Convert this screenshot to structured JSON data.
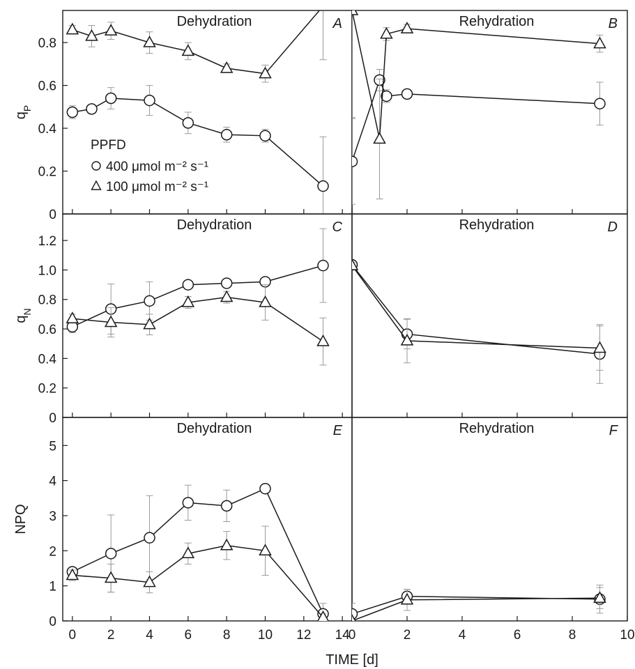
{
  "chart_data": [
    {
      "id": "A",
      "type": "line",
      "panel_title": "Dehydration",
      "panel_letter": "A",
      "ylabel": "q",
      "ylabel_sub": "P",
      "ylim": [
        0,
        0.95
      ],
      "yticks": [
        0,
        0.2,
        0.4,
        0.6,
        0.8
      ],
      "ytick_labels": [
        "0",
        "0.2",
        "0.4",
        "0.6",
        "0.8"
      ],
      "xlim": [
        -0.5,
        14.5
      ],
      "xticks": [
        0,
        2,
        4,
        6,
        8,
        10,
        12,
        14
      ],
      "series": [
        {
          "marker": "circle",
          "x": [
            0,
            1,
            2,
            4,
            6,
            8,
            10,
            13
          ],
          "y": [
            0.475,
            0.49,
            0.54,
            0.53,
            0.425,
            0.37,
            0.365,
            0.13
          ],
          "err": [
            0.03,
            0.02,
            0.05,
            0.07,
            0.05,
            0.035,
            0.03,
            0.23
          ]
        },
        {
          "marker": "triangle",
          "x": [
            0,
            1,
            2,
            4,
            6,
            8,
            10,
            13
          ],
          "y": [
            0.86,
            0.83,
            0.855,
            0.8,
            0.76,
            0.68,
            0.655,
            0.97
          ],
          "err": [
            0.02,
            0.05,
            0.04,
            0.05,
            0.04,
            0.02,
            0.04,
            0.25
          ]
        }
      ],
      "legend": {
        "title": "PPFD",
        "entries": [
          {
            "marker": "circle",
            "label": "400 μmol m⁻² s⁻¹"
          },
          {
            "marker": "triangle",
            "label": "100 μmol m⁻² s⁻¹"
          }
        ]
      }
    },
    {
      "id": "B",
      "type": "line",
      "panel_title": "Rehydration",
      "panel_letter": "B",
      "ylim": [
        0,
        0.95
      ],
      "xlim": [
        0,
        10
      ],
      "series": [
        {
          "marker": "circle",
          "x": [
            0,
            1,
            1.25,
            2,
            9
          ],
          "y": [
            0.245,
            0.625,
            0.55,
            0.56,
            0.515
          ],
          "err": [
            0.2,
            0.05,
            0.03,
            0.02,
            0.1
          ]
        },
        {
          "marker": "triangle",
          "x": [
            0,
            1,
            1.25,
            2,
            9
          ],
          "y": [
            0.95,
            0.35,
            0.84,
            0.865,
            0.795
          ],
          "err": [
            0.5,
            0.28,
            0.03,
            0.02,
            0.04
          ]
        }
      ]
    },
    {
      "id": "C",
      "type": "line",
      "panel_title": "Dehydration",
      "panel_letter": "C",
      "ylabel": "q",
      "ylabel_sub": "N",
      "ylim": [
        0,
        1.38
      ],
      "yticks": [
        0,
        0.2,
        0.4,
        0.6,
        0.8,
        1.0,
        1.2
      ],
      "ytick_labels": [
        "0",
        "0.2",
        "0.4",
        "0.6",
        "0.8",
        "1.0",
        "1.2"
      ],
      "xlim": [
        -0.5,
        14.5
      ],
      "series": [
        {
          "marker": "circle",
          "x": [
            0,
            2,
            4,
            6,
            8,
            10,
            13
          ],
          "y": [
            0.615,
            0.735,
            0.79,
            0.9,
            0.91,
            0.92,
            1.03
          ],
          "err": [
            0.04,
            0.17,
            0.13,
            0.02,
            0.02,
            0.02,
            0.25
          ]
        },
        {
          "marker": "triangle",
          "x": [
            0,
            2,
            4,
            6,
            8,
            10,
            13
          ],
          "y": [
            0.67,
            0.645,
            0.63,
            0.78,
            0.815,
            0.78,
            0.515
          ],
          "err": [
            0.03,
            0.1,
            0.07,
            0.04,
            0.04,
            0.12,
            0.16
          ]
        }
      ]
    },
    {
      "id": "D",
      "type": "line",
      "panel_title": "Rehydration",
      "panel_letter": "D",
      "ylim": [
        0,
        1.38
      ],
      "xlim": [
        0,
        10
      ],
      "series": [
        {
          "marker": "circle",
          "x": [
            0,
            2,
            9
          ],
          "y": [
            1.035,
            0.565,
            0.43
          ],
          "err": [
            0.02,
            0.1,
            0.2
          ]
        },
        {
          "marker": "triangle",
          "x": [
            0,
            2,
            9
          ],
          "y": [
            1.03,
            0.52,
            0.47
          ],
          "err": [
            0.02,
            0.15,
            0.15
          ]
        }
      ]
    },
    {
      "id": "E",
      "type": "line",
      "panel_title": "Dehydration",
      "panel_letter": "E",
      "ylabel": "NPQ",
      "ylim": [
        0,
        5.8
      ],
      "yticks": [
        0,
        1,
        2,
        3,
        4,
        5
      ],
      "ytick_labels": [
        "0",
        "1",
        "2",
        "3",
        "4",
        "5"
      ],
      "xlim": [
        -0.5,
        14.5
      ],
      "xticks": [
        0,
        2,
        4,
        6,
        8,
        10,
        12,
        14
      ],
      "xtick_labels": [
        "0",
        "2",
        "4",
        "6",
        "8",
        "10",
        "12",
        "14"
      ],
      "series": [
        {
          "marker": "circle",
          "x": [
            0,
            2,
            4,
            6,
            8,
            10,
            13
          ],
          "y": [
            1.4,
            1.92,
            2.37,
            3.37,
            3.28,
            3.77,
            0.2
          ],
          "err": [
            0.1,
            1.1,
            1.2,
            0.5,
            0.45,
            0.05,
            0.3
          ]
        },
        {
          "marker": "triangle",
          "x": [
            0,
            2,
            4,
            6,
            8,
            10,
            13
          ],
          "y": [
            1.3,
            1.22,
            1.1,
            1.92,
            2.15,
            2.0,
            0.1
          ],
          "err": [
            0.15,
            0.4,
            0.3,
            0.3,
            0.4,
            0.7,
            0.1
          ]
        }
      ]
    },
    {
      "id": "F",
      "type": "line",
      "panel_title": "Rehydration",
      "panel_letter": "F",
      "ylim": [
        0,
        5.8
      ],
      "xlim": [
        0,
        10
      ],
      "xticks": [
        0,
        2,
        4,
        6,
        8,
        10
      ],
      "xtick_labels": [
        "0",
        "2",
        "4",
        "6",
        "8",
        "10"
      ],
      "xlabel": "TIME [d]",
      "series": [
        {
          "marker": "circle",
          "x": [
            0,
            2,
            9
          ],
          "y": [
            0.2,
            0.7,
            0.62
          ],
          "err": [
            0.3,
            0.2,
            0.4
          ]
        },
        {
          "marker": "triangle",
          "x": [
            0,
            2,
            9
          ],
          "y": [
            0.0,
            0.6,
            0.65
          ],
          "err": [
            0.05,
            0.3,
            0.3
          ]
        }
      ]
    }
  ]
}
